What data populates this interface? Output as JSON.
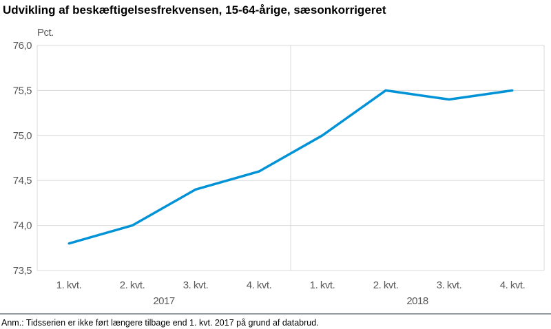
{
  "chart_data": {
    "type": "line",
    "title": "Udvikling af beskæftigelsesfrekvensen, 15-64-årige, sæsonkorrigeret",
    "ylabel": "Pct.",
    "ylim": [
      73.5,
      76.0
    ],
    "yticks": [
      "73,5",
      "74,0",
      "74,5",
      "75,0",
      "75,5",
      "76,0"
    ],
    "categories": [
      "1. kvt.",
      "2. kvt.",
      "3. kvt.",
      "4. kvt.",
      "1. kvt.",
      "2. kvt.",
      "3. kvt.",
      "4. kvt."
    ],
    "groups": [
      "2017",
      "2018"
    ],
    "values": [
      73.8,
      74.0,
      74.4,
      74.6,
      75.0,
      75.5,
      75.4,
      75.5
    ],
    "grid": "horizontal",
    "line_color": "#0092D6",
    "note": "Anm.: Tidsserien er ikke ført længere tilbage end 1. kvt. 2017 på grund af databrud."
  }
}
